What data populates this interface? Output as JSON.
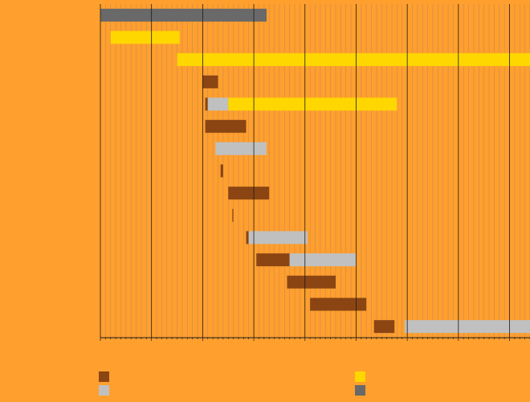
{
  "colors": {
    "background": "#FF9F2E",
    "gridline_minor": "#C98A55",
    "gridline_major": "#1A1A1A",
    "brown": "#8B4513",
    "silver": "#C0C0C0",
    "gold": "#FFD700",
    "gray": "#696969"
  },
  "chart_data": {
    "type": "bar",
    "orientation": "horizontal-gantt",
    "grid": true,
    "legend_position": "bottom",
    "xlim": [
      0,
      84
    ],
    "major_tick_step": 10,
    "minor_tick_step": 1,
    "rows": [
      {
        "segments": [
          {
            "start": 0,
            "end": 32.5,
            "series": 3
          }
        ]
      },
      {
        "segments": [
          {
            "start": 2,
            "end": 15.5,
            "series": 2
          }
        ]
      },
      {
        "segments": [
          {
            "start": 15,
            "end": 84,
            "series": 2
          }
        ]
      },
      {
        "segments": [
          {
            "start": 20,
            "end": 23,
            "series": 0
          }
        ]
      },
      {
        "segments": [
          {
            "start": 20.5,
            "end": 21,
            "series": 0
          },
          {
            "start": 21,
            "end": 25,
            "series": 1
          },
          {
            "start": 25,
            "end": 58,
            "series": 2
          }
        ]
      },
      {
        "segments": [
          {
            "start": 20.5,
            "end": 28.5,
            "series": 0
          }
        ]
      },
      {
        "segments": [
          {
            "start": 22.5,
            "end": 32.5,
            "series": 1
          }
        ]
      },
      {
        "segments": [
          {
            "start": 23.5,
            "end": 24,
            "series": 0
          }
        ]
      },
      {
        "segments": [
          {
            "start": 25,
            "end": 33,
            "series": 0
          }
        ]
      },
      {
        "segments": [
          {
            "start": 25.8,
            "end": 26,
            "series": 0
          }
        ]
      },
      {
        "segments": [
          {
            "start": 28.5,
            "end": 29,
            "series": 0
          },
          {
            "start": 29,
            "end": 40.5,
            "series": 1
          }
        ]
      },
      {
        "segments": [
          {
            "start": 30.5,
            "end": 37,
            "series": 0
          },
          {
            "start": 37,
            "end": 50,
            "series": 1
          }
        ]
      },
      {
        "segments": [
          {
            "start": 36.5,
            "end": 46,
            "series": 0
          }
        ]
      },
      {
        "segments": [
          {
            "start": 41,
            "end": 52,
            "series": 0
          }
        ]
      },
      {
        "segments": [
          {
            "start": 53.5,
            "end": 57.5,
            "series": 0
          },
          {
            "start": 59.5,
            "end": 84,
            "series": 1
          }
        ]
      }
    ],
    "series": [
      {
        "color": "#8B4513",
        "legend_icon": "brown-square-icon"
      },
      {
        "color": "#C0C0C0",
        "legend_icon": "silver-square-icon"
      },
      {
        "color": "#FFD700",
        "legend_icon": "gold-square-icon"
      },
      {
        "color": "#696969",
        "legend_icon": "gray-square-icon"
      }
    ]
  }
}
